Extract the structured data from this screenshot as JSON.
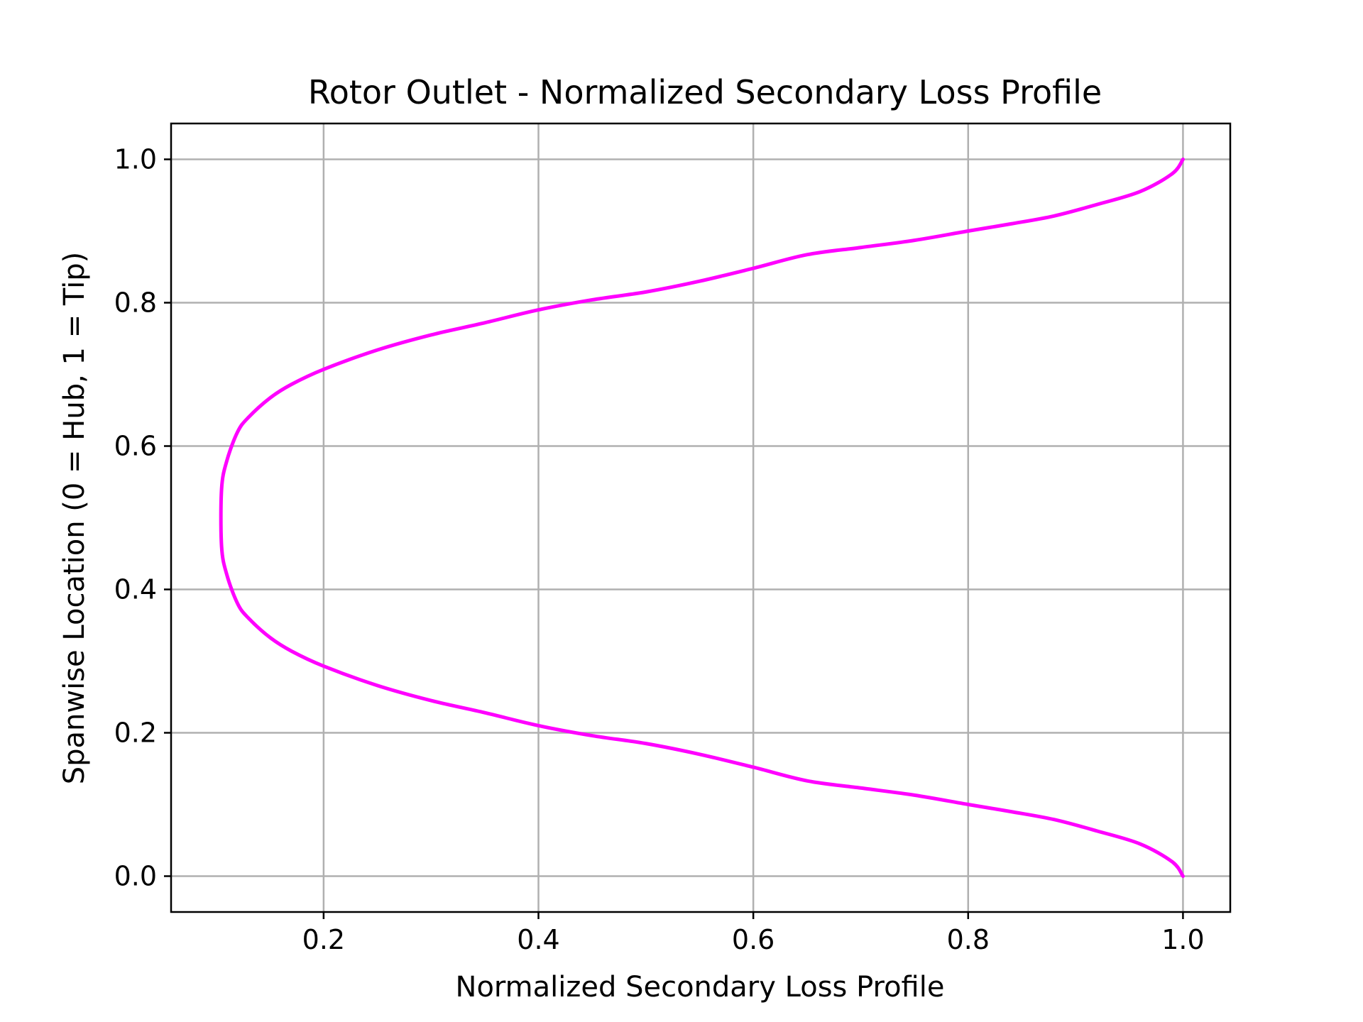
{
  "chart_data": {
    "type": "line",
    "title": "Rotor Outlet - Normalized Secondary Loss Profile",
    "xlabel": "Normalized Secondary Loss Profile",
    "ylabel": "Spanwise Location (0 = Hub, 1 = Tip)",
    "xlim": [
      0.058,
      1.044
    ],
    "ylim": [
      -0.05,
      1.05
    ],
    "xticks": [
      0.2,
      0.4,
      0.6,
      0.8,
      1.0
    ],
    "yticks": [
      0.0,
      0.2,
      0.4,
      0.6,
      0.8,
      1.0
    ],
    "xtick_labels": [
      "0.2",
      "0.4",
      "0.6",
      "0.8",
      "1.0"
    ],
    "ytick_labels": [
      "0.0",
      "0.2",
      "0.4",
      "0.6",
      "0.8",
      "1.0"
    ],
    "grid": true,
    "series": [
      {
        "color": "#ff00ff",
        "x": [
          1.0,
          0.99,
          0.96,
          0.92,
          0.88,
          0.84,
          0.8,
          0.75,
          0.7,
          0.65,
          0.6,
          0.55,
          0.5,
          0.45,
          0.4,
          0.35,
          0.3,
          0.25,
          0.2,
          0.17,
          0.15,
          0.13,
          0.12,
          0.11,
          0.105,
          0.105,
          0.11,
          0.12,
          0.13,
          0.15,
          0.17,
          0.2,
          0.25,
          0.3,
          0.35,
          0.4,
          0.45,
          0.5,
          0.55,
          0.6,
          0.65,
          0.7,
          0.75,
          0.8,
          0.84,
          0.88,
          0.92,
          0.96,
          0.99,
          1.0
        ],
        "y": [
          0.0,
          0.02,
          0.045,
          0.063,
          0.079,
          0.09,
          0.1,
          0.113,
          0.123,
          0.133,
          0.152,
          0.17,
          0.185,
          0.196,
          0.21,
          0.228,
          0.245,
          0.266,
          0.293,
          0.314,
          0.333,
          0.36,
          0.38,
          0.42,
          0.46,
          0.54,
          0.58,
          0.62,
          0.64,
          0.667,
          0.686,
          0.707,
          0.734,
          0.755,
          0.772,
          0.79,
          0.804,
          0.815,
          0.83,
          0.848,
          0.867,
          0.877,
          0.887,
          0.9,
          0.91,
          0.921,
          0.937,
          0.955,
          0.98,
          1.0
        ]
      }
    ]
  }
}
